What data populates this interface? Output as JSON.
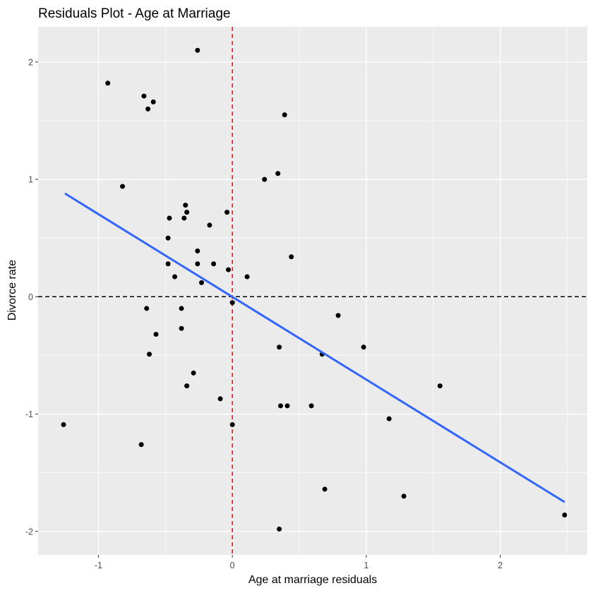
{
  "chart_data": {
    "type": "scatter",
    "title": "Residuals Plot - Age at Marriage",
    "xlabel": "Age at marriage residuals",
    "ylabel": "Divorce rate",
    "xlim": [
      -1.45,
      2.65
    ],
    "ylim": [
      -2.2,
      2.3
    ],
    "x_ticks": [
      -1,
      0,
      1,
      2
    ],
    "y_ticks": [
      -2,
      -1,
      0,
      1,
      2
    ],
    "x_tick_labels": [
      "-1",
      "0",
      "1",
      "2"
    ],
    "y_tick_labels": [
      "-2",
      "-1",
      "0",
      "1",
      "2"
    ],
    "grid": true,
    "legend": "none",
    "colors": {
      "panel": "#ebebeb",
      "grid": "#ffffff",
      "points": "#000000",
      "fit_line": "#3366ff",
      "vline": "#ff0000",
      "hline": "#000000"
    },
    "reference_lines": [
      {
        "orientation": "vertical",
        "value": 0,
        "color": "#ff0000",
        "style": "dashed"
      },
      {
        "orientation": "horizontal",
        "value": 0,
        "color": "#000000",
        "style": "dashed"
      }
    ],
    "fit_line": {
      "x": [
        -1.25,
        2.48
      ],
      "y": [
        0.88,
        -1.75
      ],
      "color": "#3366ff"
    },
    "series": [
      {
        "x": [
          -0.26,
          -0.93,
          -0.66,
          -0.59,
          -0.63,
          0.39,
          0.34,
          0.24,
          -0.82,
          -0.35,
          -0.47,
          -0.36,
          -0.34,
          -0.04,
          -0.17,
          -0.48,
          -0.26,
          0.44,
          -0.48,
          -0.26,
          -0.14,
          -0.03,
          0.11,
          -0.43,
          -0.23,
          0.0,
          -0.64,
          -0.38,
          0.79,
          -0.57,
          -0.38,
          0.35,
          0.98,
          -0.62,
          0.67,
          -0.29,
          -0.34,
          1.55,
          -0.09,
          0.36,
          0.41,
          0.59,
          1.17,
          -1.26,
          0.0,
          -0.68,
          0.69,
          1.28,
          2.48,
          0.35
        ],
        "y": [
          2.1,
          1.82,
          1.71,
          1.66,
          1.6,
          1.55,
          1.05,
          1.0,
          0.94,
          0.78,
          0.67,
          0.67,
          0.72,
          0.72,
          0.61,
          0.5,
          0.39,
          0.34,
          0.28,
          0.28,
          0.28,
          0.23,
          0.17,
          0.17,
          0.12,
          -0.05,
          -0.1,
          -0.1,
          -0.16,
          -0.32,
          -0.27,
          -0.43,
          -0.43,
          -0.49,
          -0.49,
          -0.65,
          -0.76,
          -0.76,
          -0.87,
          -0.93,
          -0.93,
          -0.93,
          -1.04,
          -1.09,
          -1.09,
          -1.26,
          -1.64,
          -1.7,
          -1.86,
          -1.98
        ]
      }
    ]
  }
}
